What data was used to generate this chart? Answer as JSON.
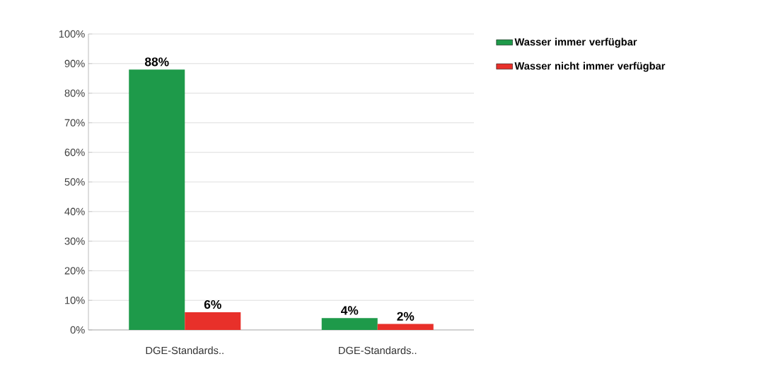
{
  "chart_data": {
    "type": "bar",
    "categories": [
      "DGE-Standards..",
      "DGE-Standards.."
    ],
    "series": [
      {
        "name": "Wasser immer verfügbar",
        "color": "#1e9a4a",
        "values": [
          88,
          4
        ],
        "value_labels": [
          "88%",
          "4%"
        ]
      },
      {
        "name": "Wasser nicht immer verfügbar",
        "color": "#e8302a",
        "values": [
          6,
          2
        ],
        "value_labels": [
          "6%",
          "2%"
        ]
      }
    ],
    "ylim": [
      0,
      100
    ],
    "yticks": [
      {
        "value": 0,
        "label": "0%"
      },
      {
        "value": 10,
        "label": "10%"
      },
      {
        "value": 20,
        "label": "20%"
      },
      {
        "value": 30,
        "label": "30%"
      },
      {
        "value": 40,
        "label": "40%"
      },
      {
        "value": 50,
        "label": "50%"
      },
      {
        "value": 60,
        "label": "60%"
      },
      {
        "value": 70,
        "label": "70%"
      },
      {
        "value": 80,
        "label": "80%"
      },
      {
        "value": 90,
        "label": "90%"
      },
      {
        "value": 100,
        "label": "100%"
      }
    ],
    "grid": "y",
    "legend": "top right"
  }
}
